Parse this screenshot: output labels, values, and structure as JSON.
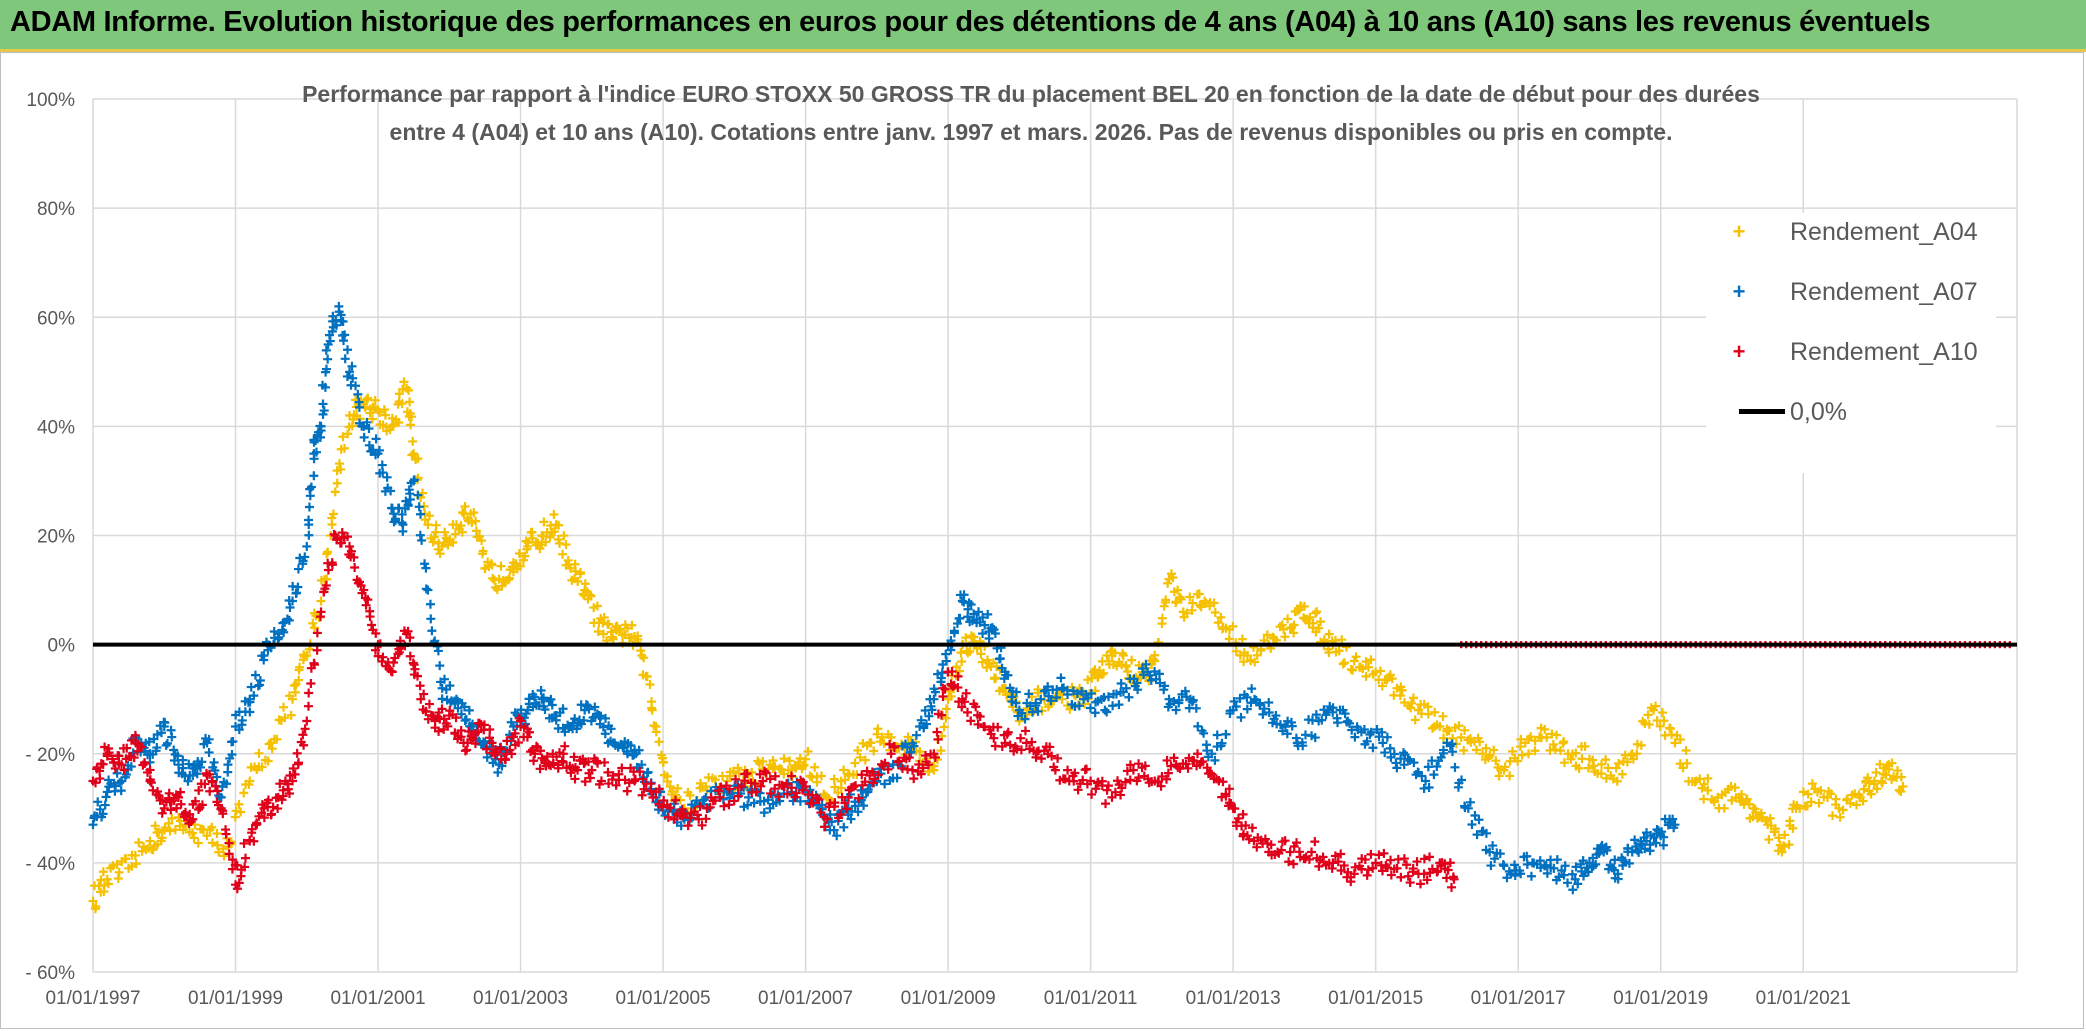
{
  "header": {
    "title": "ADAM Informe. Evolution historique des performances en euros pour des détentions de 4 ans (A04) à 10 ans (A10) sans les revenus éventuels"
  },
  "colors": {
    "banner": "#7fc77a",
    "a04": "#f5c000",
    "a07": "#0070c0",
    "a10": "#e0001a",
    "zero": "#000000",
    "grid": "#d9d9d9"
  },
  "chart_data": {
    "type": "scatter",
    "title": [
      "Performance par rapport à l'indice EURO STOXX 50 GROSS TR  du placement BEL 20 en fonction de la date de début pour des durées",
      "entre 4 (A04) et 10 ans (A10). Cotations entre janv. 1997 et mars. 2026. Pas de revenus disponibles ou pris en compte."
    ],
    "xlabel": "",
    "ylabel": "",
    "xlim": [
      1997.0,
      2024.0
    ],
    "ylim": [
      -60,
      100
    ],
    "x_ticks": [
      1997,
      1999,
      2001,
      2003,
      2005,
      2007,
      2009,
      2011,
      2013,
      2015,
      2017,
      2019,
      2021
    ],
    "x_tick_labels": [
      "01/01/1997",
      "01/01/1999",
      "01/01/2001",
      "01/01/2003",
      "01/01/2005",
      "01/01/2007",
      "01/01/2009",
      "01/01/2011",
      "01/01/2013",
      "01/01/2015",
      "01/01/2017",
      "01/01/2019",
      "01/01/2021"
    ],
    "y_ticks": [
      100,
      80,
      60,
      40,
      20,
      0,
      -20,
      -40,
      -60
    ],
    "y_tick_labels": [
      "100%",
      "80%",
      "60%",
      "40%",
      "20%",
      "0%",
      "- 20%",
      "- 40%",
      "- 60%"
    ],
    "legend": [
      "Rendement_A04",
      "Rendement_A07",
      "Rendement_A10",
      "0,0%"
    ],
    "series": [
      {
        "name": "Rendement_A04",
        "x": [
          1997.0,
          1997.2,
          1997.5,
          1997.8,
          1998.0,
          1998.3,
          1998.6,
          1998.9,
          1999.2,
          1999.5,
          1999.8,
          2000.0,
          2000.2,
          2000.4,
          2000.6,
          2000.8,
          2001.0,
          2001.2,
          2001.4,
          2001.5,
          2001.7,
          2001.9,
          2002.1,
          2002.3,
          2002.5,
          2002.7,
          2002.9,
          2003.1,
          2003.3,
          2003.5,
          2003.7,
          2003.9,
          2004.1,
          2004.3,
          2004.5,
          2004.7,
          2004.9,
          2005.1,
          2005.3,
          2005.6,
          2005.9,
          2006.2,
          2006.5,
          2006.8,
          2007.0,
          2007.3,
          2007.6,
          2007.9,
          2008.2,
          2008.5,
          2008.8,
          2009.0,
          2009.2,
          2009.4,
          2009.6,
          2009.8,
          2010.0,
          2010.3,
          2010.6,
          2010.9,
          2011.1,
          2011.3,
          2011.5,
          2011.7,
          2011.9,
          2012.1,
          2012.3,
          2012.6,
          2012.9,
          2013.2,
          2013.5,
          2013.8,
          2014.0,
          2014.2,
          2014.4,
          2014.7,
          2015.0,
          2015.3,
          2015.6,
          2015.9,
          2016.2,
          2016.5,
          2016.8,
          2017.1,
          2017.4,
          2017.7,
          2018.0,
          2018.3,
          2018.6,
          2018.9,
          2019.2,
          2019.5,
          2019.8,
          2020.1,
          2020.3,
          2020.5,
          2020.7,
          2020.9,
          2021.2,
          2021.5,
          2021.8,
          2022.0,
          2022.2,
          2022.4
        ],
        "y": [
          -47,
          -43,
          -41,
          -36,
          -34,
          -33,
          -35,
          -37,
          -25,
          -18,
          -10,
          -2,
          8,
          28,
          42,
          44,
          43,
          40,
          47,
          35,
          22,
          18,
          22,
          24,
          14,
          12,
          15,
          18,
          20,
          22,
          14,
          10,
          4,
          1,
          3,
          -2,
          -15,
          -26,
          -30,
          -26,
          -25,
          -24,
          -22,
          -23,
          -21,
          -28,
          -24,
          -18,
          -17,
          -19,
          -23,
          -10,
          0,
          0,
          -4,
          -8,
          -14,
          -10,
          -10,
          -9,
          -6,
          -2,
          -4,
          -6,
          -3,
          12,
          6,
          8,
          3,
          -2,
          0,
          3,
          7,
          3,
          0,
          -3,
          -5,
          -8,
          -12,
          -15,
          -17,
          -20,
          -23,
          -18,
          -17,
          -20,
          -21,
          -24,
          -20,
          -12,
          -18,
          -25,
          -28,
          -28,
          -30,
          -33,
          -38,
          -30,
          -27,
          -30,
          -28,
          -25,
          -22,
          -26
        ]
      },
      {
        "name": "Rendement_A07",
        "x": [
          1997.0,
          1997.2,
          1997.4,
          1997.6,
          1997.8,
          1998.0,
          1998.2,
          1998.4,
          1998.6,
          1998.8,
          1999.0,
          1999.2,
          1999.4,
          1999.6,
          1999.8,
          2000.0,
          2000.1,
          2000.2,
          2000.3,
          2000.45,
          2000.6,
          2000.8,
          2001.0,
          2001.2,
          2001.35,
          2001.5,
          2001.7,
          2001.9,
          2002.1,
          2002.3,
          2002.5,
          2002.7,
          2002.9,
          2003.1,
          2003.3,
          2003.5,
          2003.7,
          2003.9,
          2004.1,
          2004.3,
          2004.5,
          2004.7,
          2004.9,
          2005.1,
          2005.3,
          2005.6,
          2005.9,
          2006.2,
          2006.5,
          2006.8,
          2007.0,
          2007.2,
          2007.4,
          2007.6,
          2007.8,
          2008.0,
          2008.3,
          2008.6,
          2008.8,
          2009.0,
          2009.2,
          2009.4,
          2009.6,
          2009.8,
          2010.0,
          2010.3,
          2010.6,
          2010.9,
          2011.2,
          2011.5,
          2011.8,
          2012.1,
          2012.4,
          2012.7,
          2013.0,
          2013.3,
          2013.6,
          2013.9,
          2014.2,
          2014.5,
          2014.8,
          2015.1,
          2015.4,
          2015.7,
          2016.0,
          2016.3,
          2016.6,
          2016.9,
          2017.2,
          2017.5,
          2017.8,
          2018.0,
          2018.2,
          2018.4,
          2018.6,
          2018.8,
          2019.0,
          2019.2
        ],
        "y": [
          -33,
          -27,
          -25,
          -17,
          -20,
          -15,
          -22,
          -24,
          -18,
          -28,
          -15,
          -10,
          -2,
          2,
          8,
          18,
          35,
          40,
          55,
          62,
          50,
          40,
          35,
          25,
          22,
          30,
          10,
          -8,
          -10,
          -15,
          -18,
          -22,
          -15,
          -12,
          -10,
          -13,
          -15,
          -12,
          -13,
          -18,
          -20,
          -22,
          -28,
          -30,
          -32,
          -28,
          -27,
          -28,
          -30,
          -27,
          -27,
          -30,
          -34,
          -30,
          -28,
          -25,
          -22,
          -15,
          -10,
          0,
          8,
          4,
          3,
          -5,
          -12,
          -10,
          -8,
          -10,
          -12,
          -8,
          -5,
          -10,
          -10,
          -20,
          -12,
          -10,
          -13,
          -18,
          -14,
          -12,
          -16,
          -18,
          -22,
          -25,
          -18,
          -30,
          -38,
          -42,
          -40,
          -41,
          -43,
          -40,
          -38,
          -42,
          -38,
          -36,
          -35,
          -33
        ]
      },
      {
        "name": "Rendement_A10",
        "x": [
          1997.0,
          1997.2,
          1997.4,
          1997.6,
          1997.8,
          1998.0,
          1998.2,
          1998.4,
          1998.6,
          1998.8,
          1999.0,
          1999.2,
          1999.4,
          1999.6,
          1999.8,
          2000.0,
          2000.2,
          2000.4,
          2000.6,
          2000.8,
          2001.0,
          2001.2,
          2001.4,
          2001.6,
          2001.8,
          2002.0,
          2002.2,
          2002.4,
          2002.6,
          2002.8,
          2003.0,
          2003.2,
          2003.4,
          2003.6,
          2003.8,
          2004.0,
          2004.3,
          2004.6,
          2004.9,
          2005.2,
          2005.5,
          2005.8,
          2006.1,
          2006.4,
          2006.7,
          2007.0,
          2007.3,
          2007.6,
          2007.9,
          2008.2,
          2008.5,
          2008.8,
          2009.0,
          2009.2,
          2009.5,
          2009.8,
          2010.1,
          2010.4,
          2010.7,
          2011.0,
          2011.3,
          2011.6,
          2011.9,
          2012.2,
          2012.5,
          2012.8,
          2013.0,
          2013.2,
          2013.5,
          2013.8,
          2014.1,
          2014.4,
          2014.7,
          2015.0,
          2015.3,
          2015.6,
          2015.9,
          2016.1
        ],
        "y": [
          -25,
          -20,
          -22,
          -18,
          -25,
          -30,
          -28,
          -32,
          -24,
          -30,
          -44,
          -36,
          -30,
          -28,
          -25,
          -14,
          6,
          20,
          18,
          10,
          0,
          -5,
          2,
          -10,
          -14,
          -13,
          -18,
          -16,
          -18,
          -20,
          -15,
          -20,
          -22,
          -20,
          -23,
          -23,
          -24,
          -25,
          -27,
          -31,
          -32,
          -28,
          -26,
          -25,
          -26,
          -26,
          -32,
          -28,
          -24,
          -20,
          -23,
          -20,
          -5,
          -10,
          -15,
          -18,
          -18,
          -20,
          -25,
          -25,
          -28,
          -23,
          -25,
          -22,
          -20,
          -25,
          -30,
          -35,
          -38,
          -38,
          -38,
          -40,
          -42,
          -40,
          -41,
          -42,
          -40,
          -43
        ]
      },
      {
        "name": "0,0%",
        "x": [
          1997.0,
          2024.0
        ],
        "y": [
          0,
          0
        ]
      }
    ]
  }
}
